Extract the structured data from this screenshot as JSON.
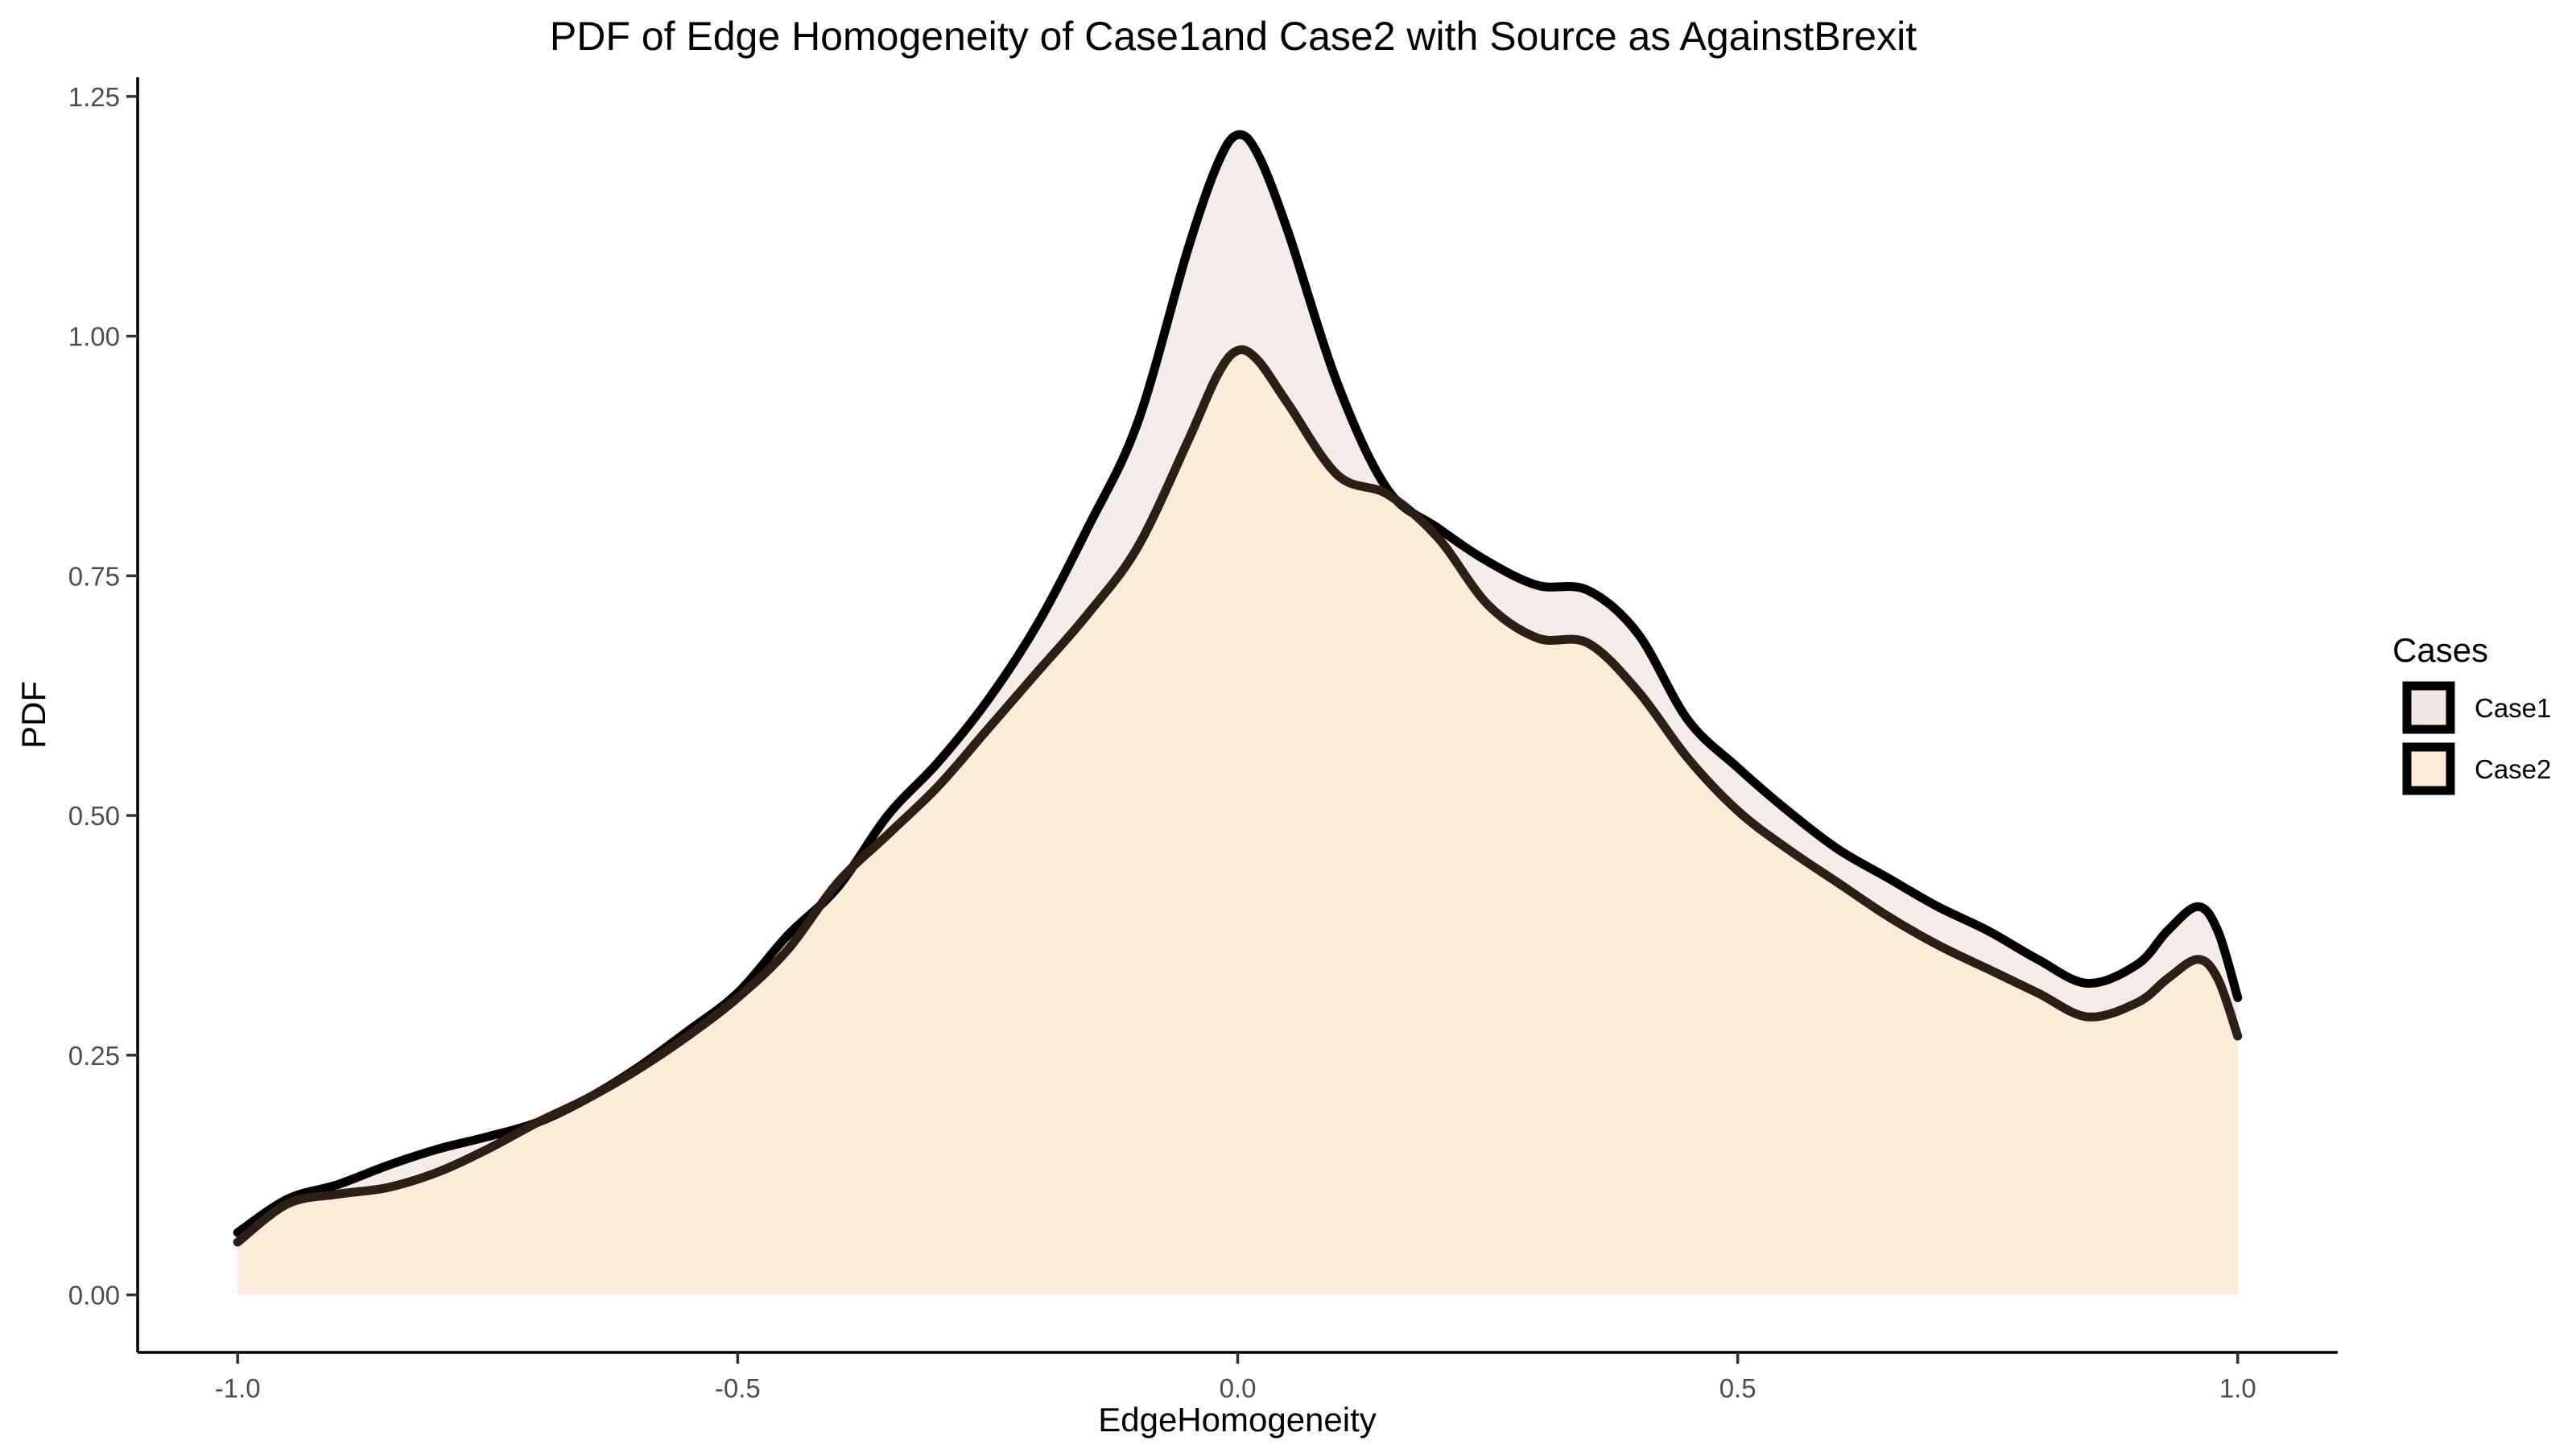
{
  "chart_data": {
    "type": "area",
    "title": "PDF of Edge Homogeneity of Case1and Case2 with Source as AgainstBrexit",
    "xlabel": "EdgeHomogeneity",
    "ylabel": "PDF",
    "xlim": [
      -1.1,
      1.1
    ],
    "ylim": [
      -0.06,
      1.27
    ],
    "x_ticks": [
      {
        "value": -1.0,
        "label": "-1.0"
      },
      {
        "value": -0.5,
        "label": "-0.5"
      },
      {
        "value": 0.0,
        "label": "0.0"
      },
      {
        "value": 0.5,
        "label": "0.5"
      },
      {
        "value": 1.0,
        "label": "1.0"
      }
    ],
    "y_ticks": [
      {
        "value": 0.0,
        "label": "0.00"
      },
      {
        "value": 0.25,
        "label": "0.25"
      },
      {
        "value": 0.5,
        "label": "0.50"
      },
      {
        "value": 0.75,
        "label": "0.75"
      },
      {
        "value": 1.0,
        "label": "1.00"
      },
      {
        "value": 1.25,
        "label": "1.25"
      }
    ],
    "grid": false,
    "legend": {
      "title": "Cases",
      "position": "right"
    },
    "series": [
      {
        "name": "Case1",
        "fill": "#f1e8e4",
        "line": "#000000",
        "x": [
          -1.0,
          -0.95,
          -0.9,
          -0.85,
          -0.8,
          -0.75,
          -0.7,
          -0.65,
          -0.6,
          -0.55,
          -0.5,
          -0.45,
          -0.4,
          -0.35,
          -0.3,
          -0.25,
          -0.2,
          -0.15,
          -0.1,
          -0.05,
          -0.02,
          0.0,
          0.02,
          0.05,
          0.1,
          0.15,
          0.2,
          0.25,
          0.3,
          0.35,
          0.4,
          0.45,
          0.5,
          0.55,
          0.6,
          0.65,
          0.7,
          0.75,
          0.8,
          0.85,
          0.9,
          0.93,
          0.96,
          0.98,
          1.0
        ],
        "y": [
          0.065,
          0.1,
          0.115,
          0.135,
          0.152,
          0.165,
          0.18,
          0.205,
          0.237,
          0.275,
          0.315,
          0.375,
          0.425,
          0.5,
          0.555,
          0.62,
          0.7,
          0.8,
          0.91,
          1.09,
          1.18,
          1.21,
          1.19,
          1.11,
          0.95,
          0.84,
          0.8,
          0.765,
          0.74,
          0.735,
          0.69,
          0.6,
          0.55,
          0.505,
          0.465,
          0.435,
          0.405,
          0.38,
          0.35,
          0.325,
          0.345,
          0.38,
          0.405,
          0.38,
          0.31
        ]
      },
      {
        "name": "Case2",
        "fill": "#fdebd7",
        "line": "#2b1f16",
        "x": [
          -1.0,
          -0.95,
          -0.9,
          -0.85,
          -0.8,
          -0.75,
          -0.7,
          -0.65,
          -0.6,
          -0.55,
          -0.5,
          -0.45,
          -0.4,
          -0.35,
          -0.3,
          -0.25,
          -0.2,
          -0.15,
          -0.1,
          -0.05,
          -0.02,
          0.0,
          0.02,
          0.05,
          0.1,
          0.15,
          0.2,
          0.25,
          0.3,
          0.35,
          0.4,
          0.45,
          0.5,
          0.55,
          0.6,
          0.65,
          0.7,
          0.75,
          0.8,
          0.85,
          0.9,
          0.93,
          0.96,
          0.98,
          1.0
        ],
        "y": [
          0.055,
          0.095,
          0.105,
          0.112,
          0.128,
          0.152,
          0.18,
          0.205,
          0.235,
          0.27,
          0.31,
          0.36,
          0.43,
          0.48,
          0.53,
          0.59,
          0.65,
          0.71,
          0.78,
          0.89,
          0.96,
          0.985,
          0.975,
          0.93,
          0.855,
          0.835,
          0.79,
          0.72,
          0.685,
          0.68,
          0.63,
          0.56,
          0.505,
          0.465,
          0.43,
          0.395,
          0.365,
          0.34,
          0.315,
          0.29,
          0.305,
          0.33,
          0.35,
          0.33,
          0.27
        ]
      }
    ]
  }
}
